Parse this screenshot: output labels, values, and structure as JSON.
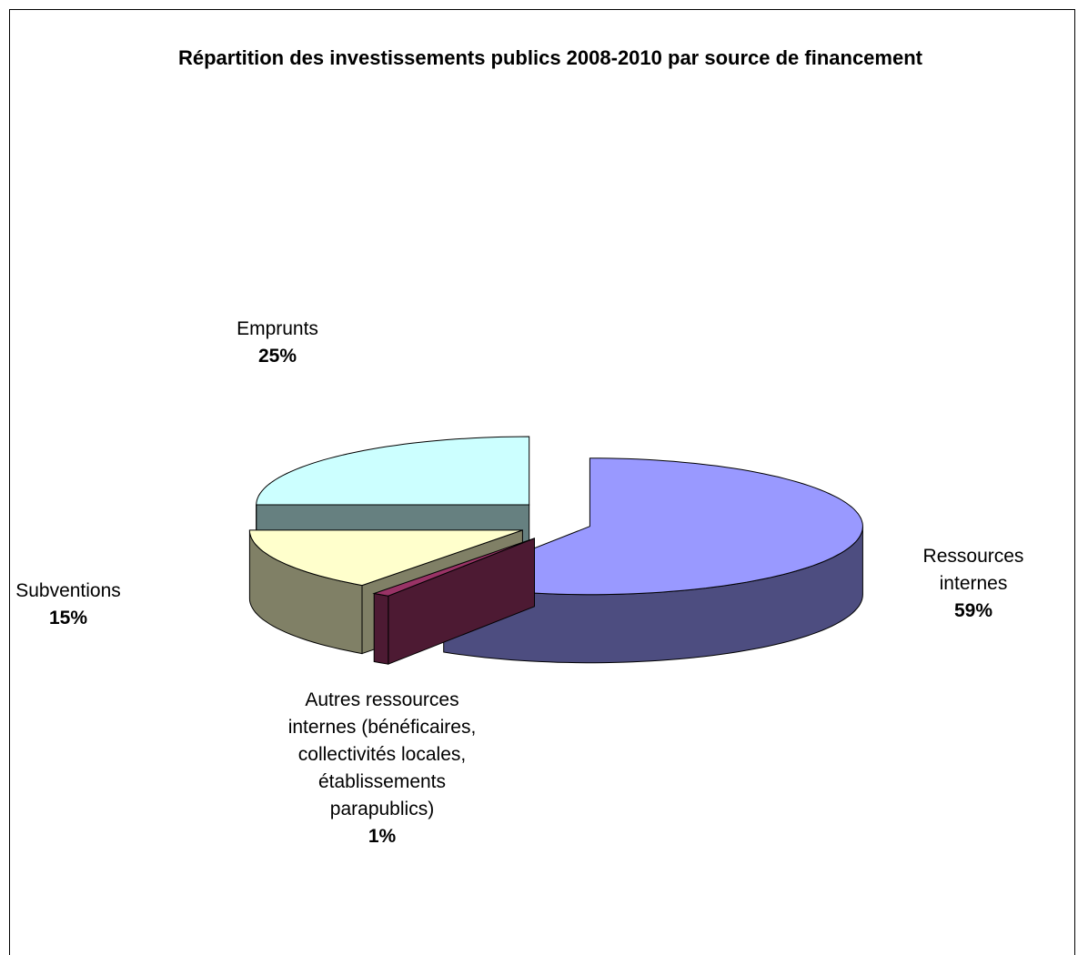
{
  "chart_data": {
    "type": "pie3d",
    "title": "Répartition des investissements publics 2008-2010 par source de financement",
    "categories": [
      "Ressources internes",
      "Autres ressources internes (bénéficaires, collectivités locales, établissements parapublics)",
      "Subventions",
      "Emprunts"
    ],
    "values": [
      59,
      1,
      15,
      25
    ],
    "value_labels": [
      "59%",
      "1%",
      "15%",
      "25%"
    ],
    "colors": [
      "#9999ff",
      "#993366",
      "#ffffcc",
      "#ccffff"
    ]
  }
}
